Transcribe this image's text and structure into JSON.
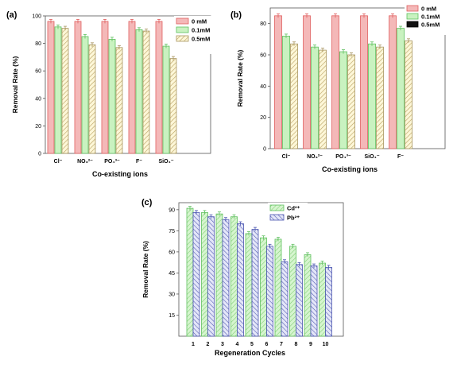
{
  "chart_data": [
    {
      "panel_label": "(a)",
      "type": "bar",
      "xlabel": "Co-existing ions",
      "ylabel": "Removal Rate (%)",
      "ylim": [
        0,
        100
      ],
      "yticks": [
        0,
        20,
        40,
        60,
        80,
        100
      ],
      "categories": [
        "Cl⁻",
        "NO₃²⁻",
        "PO₄³⁻",
        "F⁻",
        "SiO₄⁻"
      ],
      "legend_position": "top-right",
      "series": [
        {
          "name": "0 mM",
          "values": [
            96,
            96,
            96,
            96,
            96
          ],
          "pattern": "solid",
          "color": "#f4b8b8",
          "edge": "#e06060"
        },
        {
          "name": "0.1mM",
          "values": [
            92,
            85,
            83,
            90,
            78
          ],
          "pattern": "solid",
          "color": "#c9f2c0",
          "edge": "#60c060"
        },
        {
          "name": "0.5mM",
          "values": [
            91,
            79,
            77,
            89,
            69
          ],
          "pattern": "hatch",
          "color": "#fdf7d8",
          "edge": "#a89560"
        }
      ]
    },
    {
      "panel_label": "(b)",
      "type": "bar",
      "xlabel": "Co-existing ions",
      "ylabel": "Removal Rate (%)",
      "ylim": [
        0,
        90
      ],
      "yticks": [
        0,
        20,
        40,
        60,
        80
      ],
      "categories": [
        "Cl⁻",
        "NO₃²⁻",
        "PO₄³⁻",
        "SiO₄⁻",
        "F⁻"
      ],
      "legend_position": "top-right",
      "series": [
        {
          "name": "0 mM",
          "values": [
            85,
            85,
            85,
            85,
            85
          ],
          "pattern": "solid",
          "color": "#f4b8b8",
          "edge": "#e06060"
        },
        {
          "name": "0.1mM",
          "values": [
            72,
            65,
            62,
            67,
            77
          ],
          "pattern": "solid",
          "color": "#c9f2c0",
          "edge": "#60c060"
        },
        {
          "name": "0.5mM",
          "values": [
            67,
            63,
            60,
            65,
            69
          ],
          "pattern": "hatch",
          "color": "#fdf7d8",
          "edge": "#a89560",
          "legend_color": "#111111"
        }
      ]
    },
    {
      "panel_label": "(c)",
      "type": "bar",
      "xlabel": "Regeneration Cycles",
      "ylabel": "Removal Rate (%)",
      "ylim": [
        0,
        95
      ],
      "yticks": [
        15,
        30,
        45,
        60,
        75,
        90
      ],
      "categories": [
        "1",
        "2",
        "3",
        "4",
        "5",
        "6",
        "7",
        "8",
        "9",
        "10"
      ],
      "legend_position": "top-right",
      "series": [
        {
          "name": "Cd²⁺",
          "values": [
            91,
            88,
            87,
            85,
            73,
            70,
            69,
            64,
            58,
            52
          ],
          "pattern": "hatch-green",
          "color": "#c9f2c0",
          "edge": "#60c060"
        },
        {
          "name": "Pb²⁺",
          "values": [
            88,
            85,
            83,
            80,
            76,
            64,
            53,
            51,
            50,
            49
          ],
          "pattern": "hatch-blue",
          "color": "#d8dcf4",
          "edge": "#4a55b0"
        }
      ]
    }
  ]
}
